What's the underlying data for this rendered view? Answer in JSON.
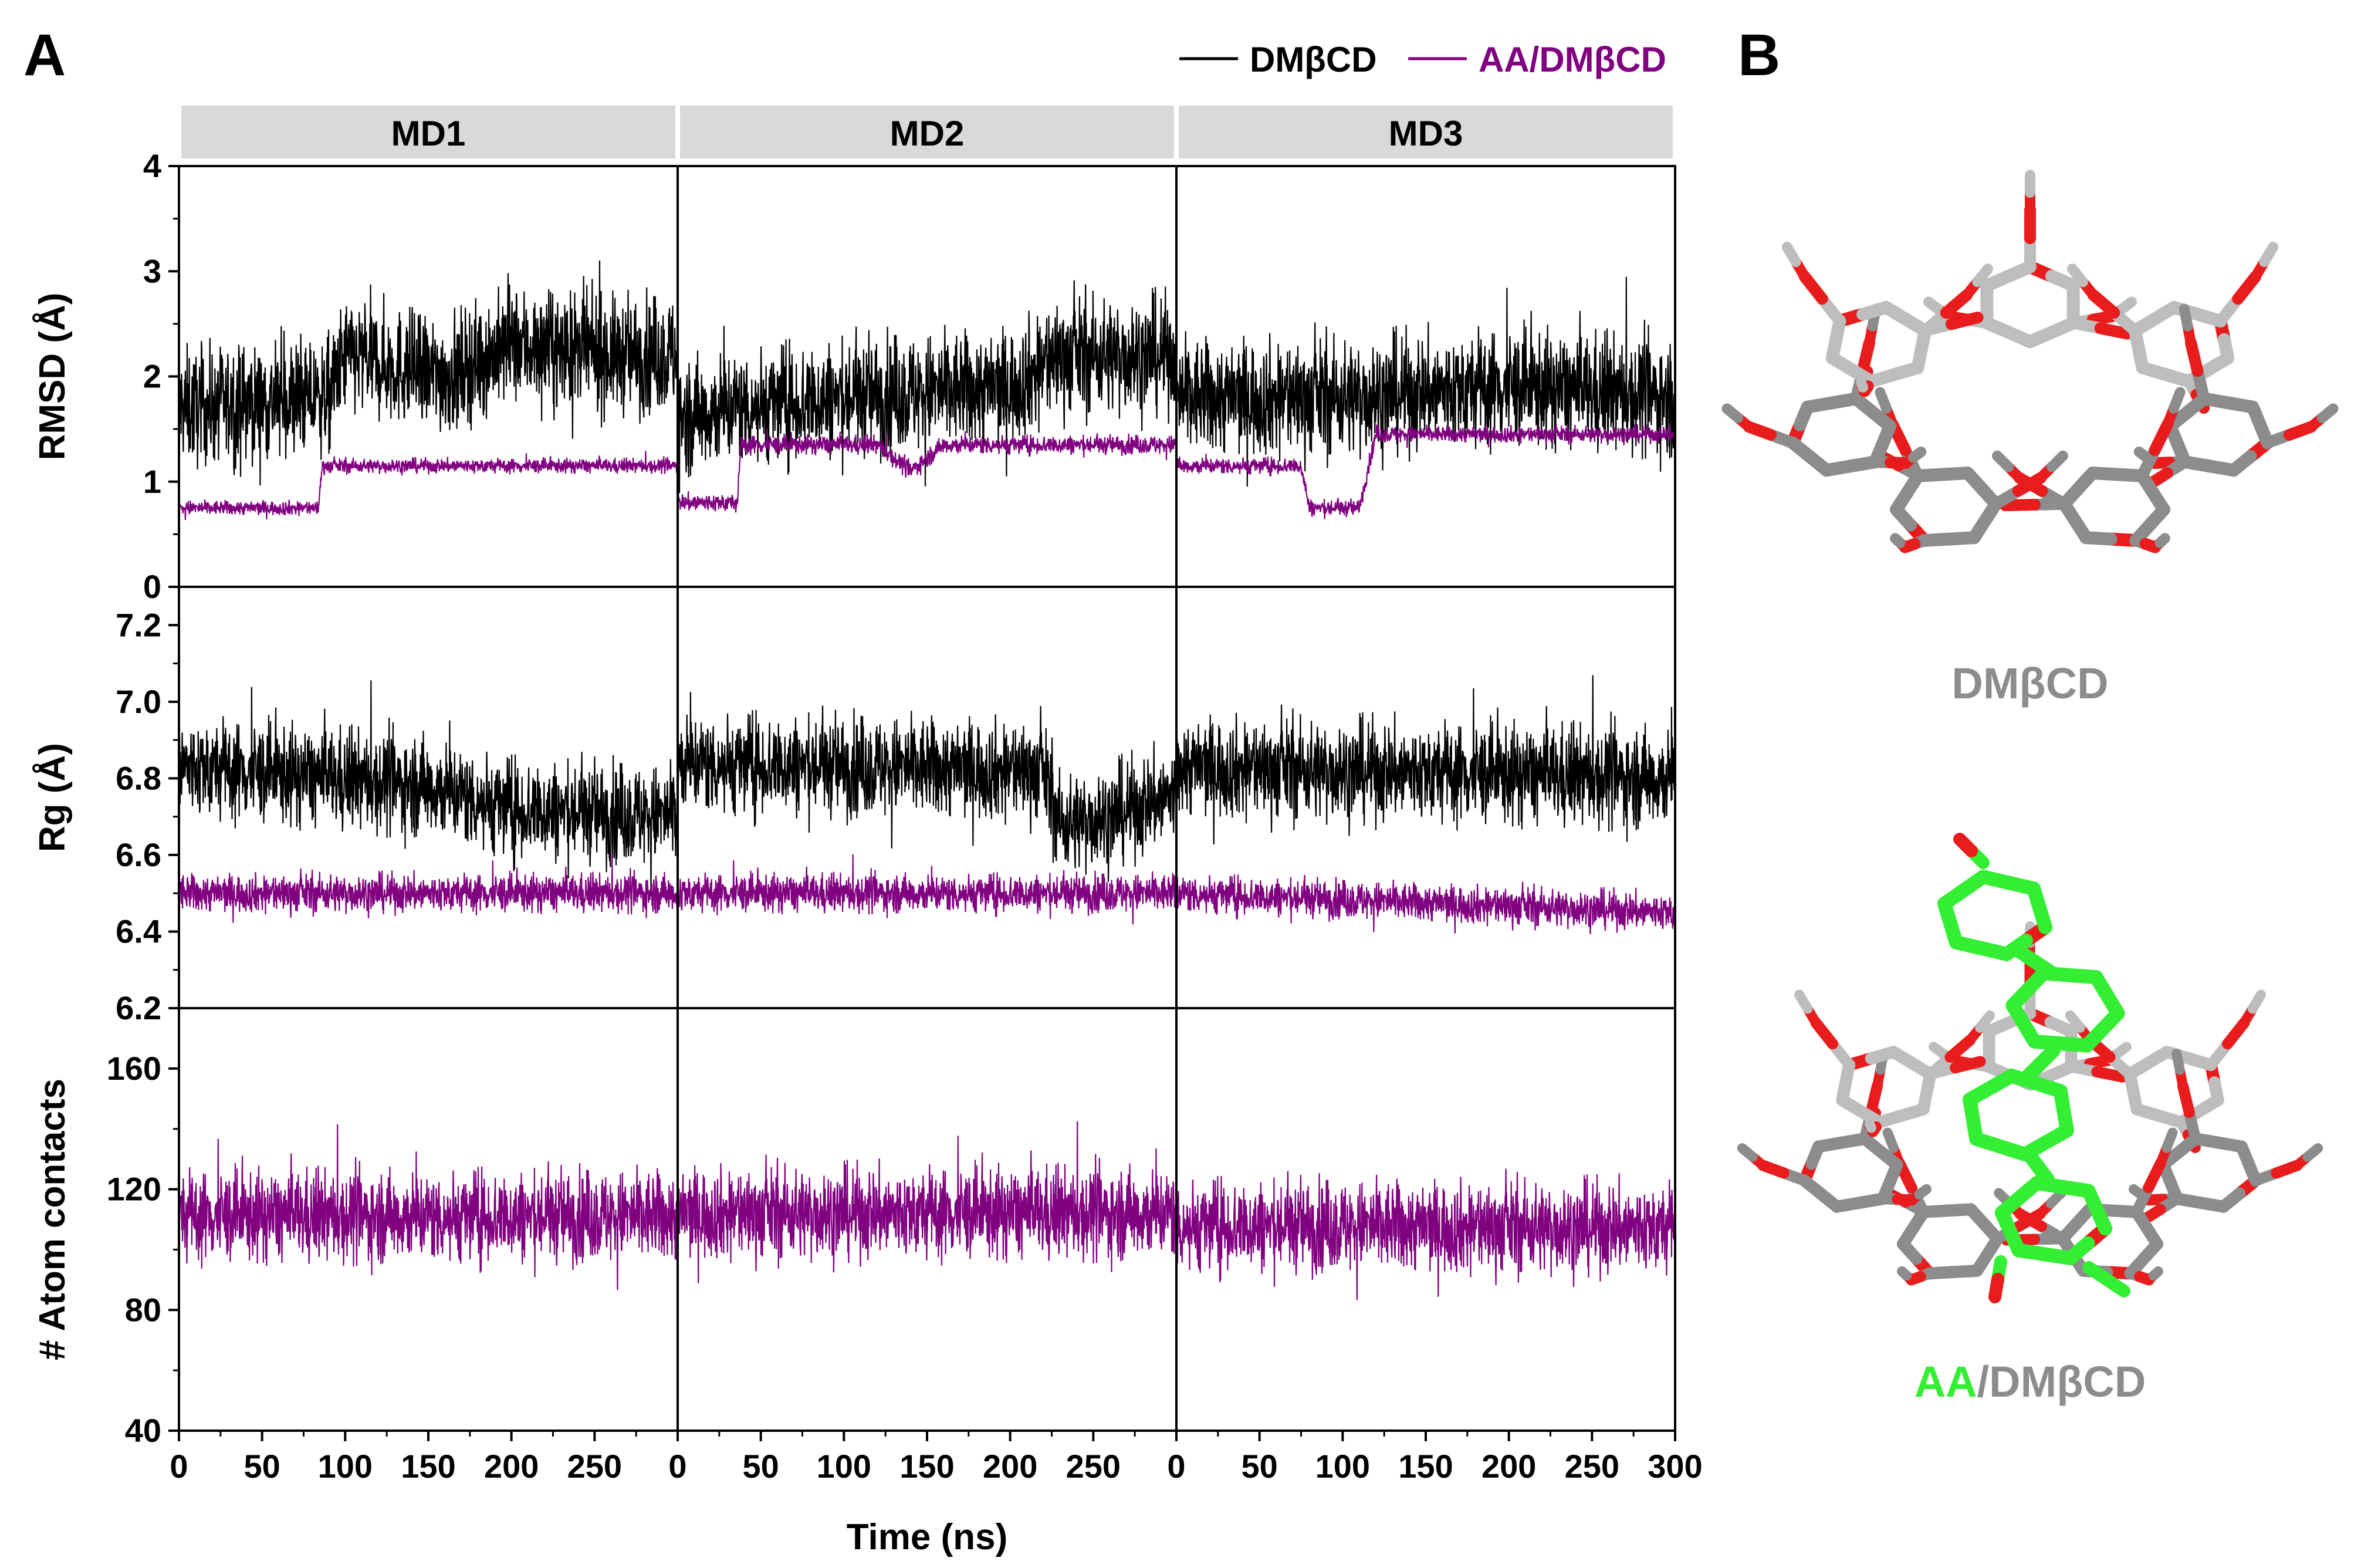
{
  "panels": {
    "a_label": "A",
    "b_label": "B"
  },
  "colors": {
    "DMbCD": "#000000",
    "AA_DMbCD": "#800080",
    "strip_bg": "#d9d9d9",
    "molecule_carbon": "#8c8c8c",
    "molecule_oxygen": "#e81c1c",
    "guest_carbon": "#33ee33"
  },
  "legend": [
    {
      "label": "DMβCD",
      "color": "#000000"
    },
    {
      "label": "AA/DMβCD",
      "color": "#800080"
    }
  ],
  "chart_data": {
    "type": "line",
    "layout": "faceted grid (rows: metrics, columns: MD runs)",
    "columns": [
      "MD1",
      "MD2",
      "MD3"
    ],
    "xlabel": "Time (ns)",
    "x_ticks": [
      0,
      50,
      100,
      150,
      200,
      250,
      300
    ],
    "xlim": [
      0,
      300
    ],
    "grid": false,
    "legend_position": "top-right",
    "rows": [
      {
        "id": "rmsd",
        "ylabel": "RMSD (Å)",
        "ylim": [
          0,
          4
        ],
        "y_ticks": [
          "0",
          "1",
          "2",
          "3",
          "4"
        ],
        "y_tick_values": [
          0,
          1,
          2,
          3,
          4
        ],
        "series": [
          {
            "name": "DMβCD",
            "runs": [
              {
                "segments": [
                  [
                    0,
                    1.7
                  ],
                  [
                    90,
                    1.8
                  ],
                  [
                    100,
                    2.2
                  ],
                  [
                    160,
                    2.0
                  ],
                  [
                    200,
                    2.3
                  ],
                  [
                    260,
                    2.2
                  ],
                  [
                    300,
                    2.2
                  ]
                ],
                "spread": 0.55
              },
              {
                "segments": [
                  [
                    0,
                    1.6
                  ],
                  [
                    30,
                    1.7
                  ],
                  [
                    100,
                    1.8
                  ],
                  [
                    200,
                    1.9
                  ],
                  [
                    230,
                    2.2
                  ],
                  [
                    270,
                    2.2
                  ],
                  [
                    300,
                    2.2
                  ]
                ],
                "spread": 0.55
              },
              {
                "segments": [
                  [
                    0,
                    1.8
                  ],
                  [
                    100,
                    1.8
                  ],
                  [
                    200,
                    1.9
                  ],
                  [
                    300,
                    1.8
                  ]
                ],
                "spread": 0.55
              }
            ]
          },
          {
            "name": "AA/DMβCD",
            "runs": [
              {
                "segments": [
                  [
                    0,
                    0.75
                  ],
                  [
                    84,
                    0.75
                  ],
                  [
                    86,
                    1.15
                  ],
                  [
                    180,
                    1.15
                  ],
                  [
                    300,
                    1.15
                  ]
                ],
                "spread": 0.07
              },
              {
                "segments": [
                  [
                    0,
                    0.8
                  ],
                  [
                    36,
                    0.8
                  ],
                  [
                    38,
                    1.35
                  ],
                  [
                    120,
                    1.35
                  ],
                  [
                    140,
                    1.1
                  ],
                  [
                    160,
                    1.35
                  ],
                  [
                    300,
                    1.35
                  ]
                ],
                "spread": 0.09
              },
              {
                "segments": [
                  [
                    0,
                    1.15
                  ],
                  [
                    75,
                    1.15
                  ],
                  [
                    80,
                    0.75
                  ],
                  [
                    110,
                    0.75
                  ],
                  [
                    120,
                    1.45
                  ],
                  [
                    300,
                    1.45
                  ]
                ],
                "spread": 0.08
              }
            ]
          }
        ]
      },
      {
        "id": "rg",
        "ylabel": "Rg (Å)",
        "ylim": [
          6.2,
          7.3
        ],
        "y_ticks": [
          "6.2",
          "6.4",
          "6.6",
          "6.8",
          "7.0",
          "7.2"
        ],
        "y_tick_values": [
          6.2,
          6.4,
          6.6,
          6.8,
          7.0,
          7.2
        ],
        "series": [
          {
            "name": "DMβCD",
            "runs": [
              {
                "segments": [
                  [
                    0,
                    6.83
                  ],
                  [
                    150,
                    6.78
                  ],
                  [
                    200,
                    6.72
                  ],
                  [
                    300,
                    6.7
                  ]
                ],
                "spread": 0.13
              },
              {
                "segments": [
                  [
                    0,
                    6.84
                  ],
                  [
                    220,
                    6.82
                  ],
                  [
                    230,
                    6.68
                  ],
                  [
                    260,
                    6.7
                  ],
                  [
                    300,
                    6.76
                  ]
                ],
                "spread": 0.13
              },
              {
                "segments": [
                  [
                    0,
                    6.83
                  ],
                  [
                    300,
                    6.8
                  ]
                ],
                "spread": 0.13
              }
            ]
          },
          {
            "name": "AA/DMβCD",
            "runs": [
              {
                "segments": [
                  [
                    0,
                    6.5
                  ],
                  [
                    300,
                    6.5
                  ]
                ],
                "spread": 0.05
              },
              {
                "segments": [
                  [
                    0,
                    6.5
                  ],
                  [
                    300,
                    6.5
                  ]
                ],
                "spread": 0.05
              },
              {
                "segments": [
                  [
                    0,
                    6.5
                  ],
                  [
                    300,
                    6.45
                  ]
                ],
                "spread": 0.05
              }
            ]
          }
        ]
      },
      {
        "id": "contacts",
        "ylabel": "# Atom contacts",
        "ylim": [
          40,
          180
        ],
        "y_ticks": [
          "40",
          "80",
          "120",
          "160"
        ],
        "y_tick_values": [
          40,
          80,
          120,
          160
        ],
        "series": [
          {
            "name": "AA/DMβCD",
            "runs": [
              {
                "segments": [
                  [
                    0,
                    111
                  ],
                  [
                    300,
                    111
                  ]
                ],
                "spread": 15
              },
              {
                "segments": [
                  [
                    0,
                    112
                  ],
                  [
                    300,
                    112
                  ]
                ],
                "spread": 15
              },
              {
                "segments": [
                  [
                    0,
                    108
                  ],
                  [
                    300,
                    107
                  ]
                ],
                "spread": 15
              }
            ]
          }
        ]
      }
    ]
  },
  "molecules": {
    "top_label": "DMβCD",
    "bottom_label_guest": "AA",
    "bottom_label_sep": "/",
    "bottom_label_host": "DMβCD"
  }
}
